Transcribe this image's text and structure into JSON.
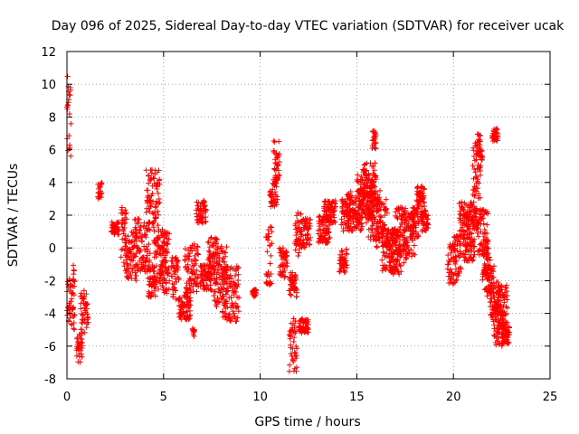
{
  "chart_data": {
    "type": "scatter",
    "title": "Day 096 of 2025, Sidereal Day-to-day VTEC variation (SDTVAR) for receiver ucak",
    "xlabel": "GPS time / hours",
    "ylabel": "SDTVAR / TECUs",
    "xlim": [
      0,
      25
    ],
    "ylim": [
      -8,
      12
    ],
    "xticks": [
      0,
      5,
      10,
      15,
      20,
      25
    ],
    "yticks": [
      -8,
      -6,
      -4,
      -2,
      0,
      2,
      4,
      6,
      8,
      10,
      12
    ],
    "grid": true,
    "marker": "+",
    "color": "#ff0000",
    "clusters": [
      [
        0.0,
        0.2,
        5.0,
        10.5
      ],
      [
        0.0,
        0.4,
        -5.0,
        -1.8
      ],
      [
        0.5,
        0.8,
        -7.0,
        -5.2
      ],
      [
        0.7,
        1.1,
        -5.2,
        -2.6
      ],
      [
        0.3,
        0.4,
        -3.0,
        -1.0
      ],
      [
        1.6,
        1.8,
        3.0,
        4.0
      ],
      [
        2.3,
        2.7,
        0.8,
        1.6
      ],
      [
        2.8,
        3.1,
        -1.2,
        2.5
      ],
      [
        3.0,
        3.6,
        -2.0,
        1.0
      ],
      [
        3.5,
        4.3,
        -1.5,
        1.8
      ],
      [
        4.1,
        4.8,
        1.0,
        4.9
      ],
      [
        4.2,
        4.6,
        -3.0,
        -1.0
      ],
      [
        4.5,
        5.2,
        -2.6,
        1.0
      ],
      [
        4.8,
        5.3,
        -3.0,
        1.2
      ],
      [
        5.4,
        5.8,
        -3.2,
        -0.5
      ],
      [
        5.8,
        6.4,
        -4.4,
        -2.8
      ],
      [
        6.1,
        6.8,
        -2.8,
        0.3
      ],
      [
        6.5,
        6.6,
        -5.4,
        -4.9
      ],
      [
        6.7,
        7.2,
        1.5,
        2.9
      ],
      [
        6.9,
        7.5,
        -2.6,
        -1.0
      ],
      [
        7.3,
        7.8,
        -2.2,
        0.8
      ],
      [
        7.6,
        8.3,
        -3.6,
        0.2
      ],
      [
        8.0,
        8.9,
        -4.5,
        -1.0
      ],
      [
        9.6,
        9.8,
        -3.0,
        -2.5
      ],
      [
        10.3,
        10.6,
        -2.3,
        1.5
      ],
      [
        10.5,
        10.9,
        2.5,
        4.2
      ],
      [
        10.7,
        11.0,
        4.0,
        6.6
      ],
      [
        11.0,
        11.4,
        -1.8,
        0.0
      ],
      [
        11.5,
        11.9,
        -7.6,
        -4.3
      ],
      [
        11.5,
        11.9,
        -3.0,
        -1.5
      ],
      [
        11.8,
        12.1,
        -0.5,
        2.2
      ],
      [
        12.0,
        12.5,
        -5.2,
        -4.3
      ],
      [
        12.1,
        12.6,
        0.0,
        1.8
      ],
      [
        13.0,
        13.6,
        0.3,
        2.0
      ],
      [
        13.3,
        13.9,
        1.5,
        2.9
      ],
      [
        14.1,
        14.5,
        -1.5,
        0.0
      ],
      [
        14.2,
        14.7,
        1.0,
        3.0
      ],
      [
        14.5,
        15.3,
        1.0,
        3.5
      ],
      [
        15.0,
        15.9,
        1.5,
        4.5
      ],
      [
        15.3,
        16.0,
        2.0,
        5.2
      ],
      [
        15.6,
        16.2,
        0.5,
        3.5
      ],
      [
        15.8,
        16.0,
        6.0,
        7.2
      ],
      [
        16.0,
        16.6,
        0.0,
        3.0
      ],
      [
        16.3,
        17.0,
        -1.5,
        1.2
      ],
      [
        16.7,
        17.3,
        -1.8,
        1.0
      ],
      [
        17.0,
        17.6,
        -1.0,
        2.5
      ],
      [
        17.4,
        18.0,
        -0.6,
        2.3
      ],
      [
        17.8,
        18.2,
        0.5,
        2.5
      ],
      [
        18.1,
        18.5,
        2.5,
        3.8
      ],
      [
        18.3,
        18.7,
        1.0,
        2.3
      ],
      [
        19.7,
        20.1,
        -2.2,
        0.3
      ],
      [
        20.0,
        20.4,
        -2.0,
        0.8
      ],
      [
        20.3,
        20.8,
        0.5,
        2.8
      ],
      [
        20.5,
        21.1,
        -0.8,
        1.5
      ],
      [
        20.8,
        21.2,
        1.0,
        2.8
      ],
      [
        21.0,
        21.4,
        3.0,
        6.5
      ],
      [
        21.2,
        21.5,
        5.0,
        7.0
      ],
      [
        21.2,
        21.8,
        -0.5,
        2.5
      ],
      [
        21.5,
        21.9,
        -2.0,
        0.5
      ],
      [
        21.6,
        22.1,
        -3.0,
        -1.0
      ],
      [
        21.9,
        22.4,
        -4.5,
        -2.0
      ],
      [
        22.0,
        22.3,
        6.5,
        7.3
      ],
      [
        22.1,
        22.6,
        -6.0,
        -3.5
      ],
      [
        22.3,
        22.8,
        -4.8,
        -2.2
      ],
      [
        22.5,
        22.9,
        -6.0,
        -4.8
      ]
    ]
  }
}
